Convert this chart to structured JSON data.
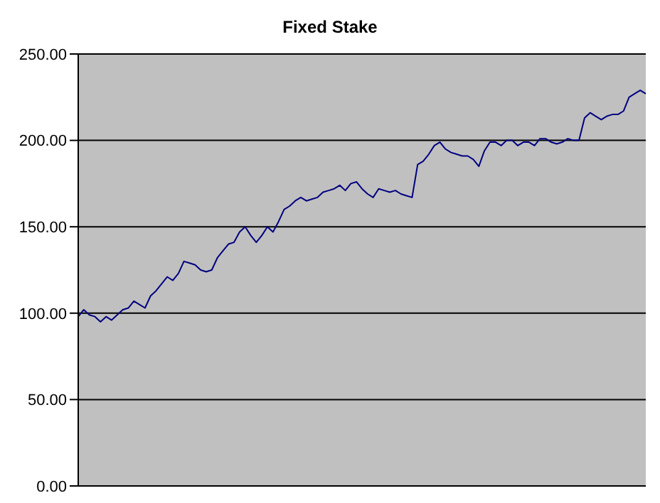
{
  "chart_data": {
    "type": "line",
    "title": "Fixed Stake",
    "categories": [
      null,
      null,
      null,
      null,
      null,
      null,
      null,
      null,
      null,
      null,
      null,
      null,
      null,
      null,
      null,
      null,
      null,
      null,
      null,
      null,
      null,
      null,
      null,
      null,
      null,
      null,
      null,
      null,
      null,
      null,
      null,
      null,
      null,
      null,
      null,
      null,
      null,
      null,
      null,
      null,
      null,
      null,
      null,
      null,
      null,
      null,
      null,
      null,
      null,
      null,
      null,
      null,
      null,
      null,
      null,
      null,
      null,
      null,
      null,
      null,
      null,
      null,
      null,
      null,
      null,
      null,
      null,
      null,
      null,
      null,
      null,
      null,
      null,
      null,
      null,
      null,
      null,
      null,
      null,
      null,
      null,
      null,
      null,
      null,
      null,
      null,
      null,
      null,
      null,
      null,
      null,
      null,
      null,
      null,
      null,
      null,
      null,
      null,
      null,
      null,
      null,
      null,
      null
    ],
    "series": [
      {
        "color": "#000080",
        "values": [
          98,
          102,
          99,
          98,
          95,
          98,
          96,
          99,
          102,
          103,
          107,
          105,
          103,
          110,
          113,
          117,
          121,
          119,
          123,
          130,
          129,
          128,
          125,
          124,
          125,
          132,
          136,
          140,
          141,
          147,
          150,
          145,
          141,
          145,
          150,
          147,
          153,
          160,
          162,
          165,
          167,
          165,
          166,
          167,
          170,
          171,
          172,
          174,
          171,
          175,
          176,
          172,
          169,
          167,
          172,
          171,
          170,
          171,
          169,
          168,
          167,
          186,
          188,
          192,
          197,
          199,
          195,
          193,
          192,
          191,
          191,
          189,
          185,
          194,
          199,
          199,
          197,
          200,
          200,
          197,
          199,
          199,
          197,
          201,
          201,
          199,
          198,
          199,
          201,
          200,
          200,
          213,
          216,
          214,
          212,
          214,
          215,
          215,
          217,
          225,
          227,
          229,
          227
        ]
      }
    ],
    "ylim": [
      0,
      250
    ],
    "yticks": [
      {
        "value": 0,
        "label": "0.00"
      },
      {
        "value": 50,
        "label": "50.00"
      },
      {
        "value": 100,
        "label": "100.00"
      },
      {
        "value": 150,
        "label": "150.00"
      },
      {
        "value": 200,
        "label": "200.00"
      },
      {
        "value": 250,
        "label": "250.00"
      }
    ],
    "grid": "y",
    "tick_labels": "y",
    "marker": "none",
    "line_style": "solid"
  }
}
